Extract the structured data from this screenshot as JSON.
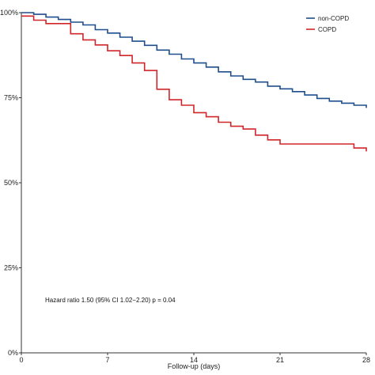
{
  "chart_data": {
    "type": "line",
    "title": "",
    "xlabel": "Follow-up (days)",
    "ylabel": "",
    "xlim": [
      0,
      28
    ],
    "ylim": [
      0,
      100
    ],
    "x_ticks": [
      0,
      7,
      14,
      21,
      28
    ],
    "y_ticks": [
      0,
      25,
      50,
      75,
      100
    ],
    "y_tick_labels": [
      "0%",
      "25%",
      "50%",
      "75%",
      "100%"
    ],
    "grid": false,
    "legend_position": "top-right",
    "step": true,
    "series": [
      {
        "name": "non-COPD",
        "color": "#1f4e8c",
        "points": [
          [
            0,
            100
          ],
          [
            1,
            99.5
          ],
          [
            2,
            98.7
          ],
          [
            3,
            98.0
          ],
          [
            4,
            97.2
          ],
          [
            5,
            96.4
          ],
          [
            6,
            95.0
          ],
          [
            7,
            94.0
          ],
          [
            8,
            92.8
          ],
          [
            9,
            91.6
          ],
          [
            10,
            90.4
          ],
          [
            11,
            89.0
          ],
          [
            12,
            87.8
          ],
          [
            13,
            86.4
          ],
          [
            14,
            85.2
          ],
          [
            15,
            84.0
          ],
          [
            16,
            82.6
          ],
          [
            17,
            81.4
          ],
          [
            18,
            80.4
          ],
          [
            19,
            79.6
          ],
          [
            20,
            78.4
          ],
          [
            21,
            77.6
          ],
          [
            22,
            76.8
          ],
          [
            23,
            75.8
          ],
          [
            24,
            74.8
          ],
          [
            25,
            74.0
          ],
          [
            26,
            73.4
          ],
          [
            27,
            72.8
          ],
          [
            28,
            72.0
          ]
        ]
      },
      {
        "name": "COPD",
        "color": "#d0262a",
        "points": [
          [
            0,
            99
          ],
          [
            1,
            97.8
          ],
          [
            2,
            96.8
          ],
          [
            4,
            93.8
          ],
          [
            5,
            92.0
          ],
          [
            6,
            90.5
          ],
          [
            7,
            88.8
          ],
          [
            8,
            87.4
          ],
          [
            9,
            85.2
          ],
          [
            10,
            83.0
          ],
          [
            11,
            77.5
          ],
          [
            12,
            74.4
          ],
          [
            13,
            72.8
          ],
          [
            14,
            70.6
          ],
          [
            15,
            69.4
          ],
          [
            16,
            67.8
          ],
          [
            17,
            66.6
          ],
          [
            18,
            65.8
          ],
          [
            19,
            64.0
          ],
          [
            20,
            62.6
          ],
          [
            21,
            61.4
          ],
          [
            26,
            61.4
          ],
          [
            27,
            60.2
          ],
          [
            28,
            59.2
          ]
        ]
      }
    ],
    "annotation": "Hazard ratio 1.50 (95% CI 1.02−2.20) p = 0.04"
  }
}
